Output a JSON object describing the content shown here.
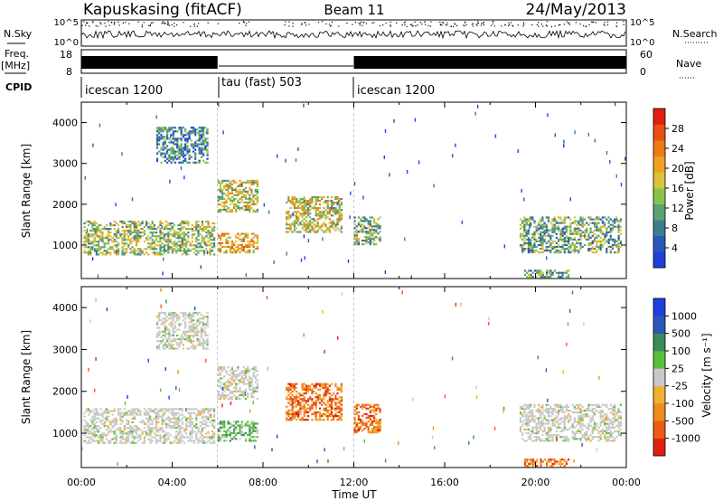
{
  "header": {
    "site": "Kapuskasing (fitACF)",
    "beam": "Beam 11",
    "date": "24/May/2013"
  },
  "status_panels": {
    "nsky_label": "N.Sky",
    "nsky_ticks": [
      "10^5",
      "10^0"
    ],
    "nsearch_label": "N.Search",
    "freq_label": "Freq.",
    "freq_unit": "[MHz]",
    "freq_ticks": [
      "18",
      "8"
    ],
    "nave_label": "Nave",
    "nave_ticks": [
      "60",
      "0"
    ],
    "cpid_label": "CPID",
    "cpid_segments": [
      {
        "label": "icescan 1200",
        "start_hour": 0,
        "end_hour": 6
      },
      {
        "label": "tau (fast) 503",
        "start_hour": 6,
        "end_hour": 12
      },
      {
        "label": "icescan 1200",
        "start_hour": 12,
        "end_hour": 24
      }
    ]
  },
  "axes": {
    "xlabel": "Time UT",
    "x_ticks": [
      "00:00",
      "04:00",
      "08:00",
      "12:00",
      "16:00",
      "20:00",
      "00:00"
    ],
    "ylabel": "Slant Range [km]",
    "y_ticks": [
      "1000",
      "2000",
      "3000",
      "4000"
    ]
  },
  "colorbars": {
    "power": {
      "label": "Power [dB]",
      "ticks": [
        "4",
        "8",
        "12",
        "16",
        "20",
        "24",
        "28"
      ],
      "colors": [
        "#1f3fe0",
        "#2a58b8",
        "#3c7d8c",
        "#5aa271",
        "#8ac34b",
        "#d9c43a",
        "#f1a120",
        "#ee7a12",
        "#ea5010",
        "#e0200e"
      ]
    },
    "velocity": {
      "label": "Velocity [m s⁻¹]",
      "ticks": [
        "1000",
        "500",
        "100",
        "25",
        "-25",
        "-100",
        "-500",
        "-1000"
      ],
      "colors": [
        "#1f3fe0",
        "#2a58b8",
        "#3c8a5a",
        "#5bbf3b",
        "#c9c9c9",
        "#f0b030",
        "#f08a1a",
        "#ee5a12",
        "#e0200e"
      ]
    }
  },
  "chart_data": {
    "type": "heatmap",
    "x_range_hours": [
      0,
      24
    ],
    "y_range_km": [
      180,
      4500
    ],
    "panels": [
      "power",
      "velocity"
    ],
    "scatter_regions": [
      {
        "t0": 0.1,
        "t1": 5.9,
        "r0": 750,
        "r1": 1600,
        "power_mean": 12,
        "velocity_class": "near-zero"
      },
      {
        "t0": 3.3,
        "t1": 5.6,
        "r0": 3000,
        "r1": 3900,
        "power_mean": 6,
        "velocity_class": "near-zero"
      },
      {
        "t0": 6.0,
        "t1": 7.8,
        "r0": 1800,
        "r1": 2600,
        "power_mean": 14,
        "velocity_class": "near-zero"
      },
      {
        "t0": 6.0,
        "t1": 7.8,
        "r0": 800,
        "r1": 1300,
        "power_mean": 18,
        "velocity_class": "positive"
      },
      {
        "t0": 9.0,
        "t1": 11.5,
        "r0": 1300,
        "r1": 2200,
        "power_mean": 14,
        "velocity_class": "negative"
      },
      {
        "t0": 12.0,
        "t1": 13.2,
        "r0": 1000,
        "r1": 1700,
        "power_mean": 10,
        "velocity_class": "negative"
      },
      {
        "t0": 19.3,
        "t1": 23.8,
        "r0": 800,
        "r1": 1700,
        "power_mean": 10,
        "velocity_class": "near-zero"
      },
      {
        "t0": 19.5,
        "t1": 21.5,
        "r0": 200,
        "r1": 400,
        "power_mean": 8,
        "velocity_class": "negative"
      }
    ]
  }
}
